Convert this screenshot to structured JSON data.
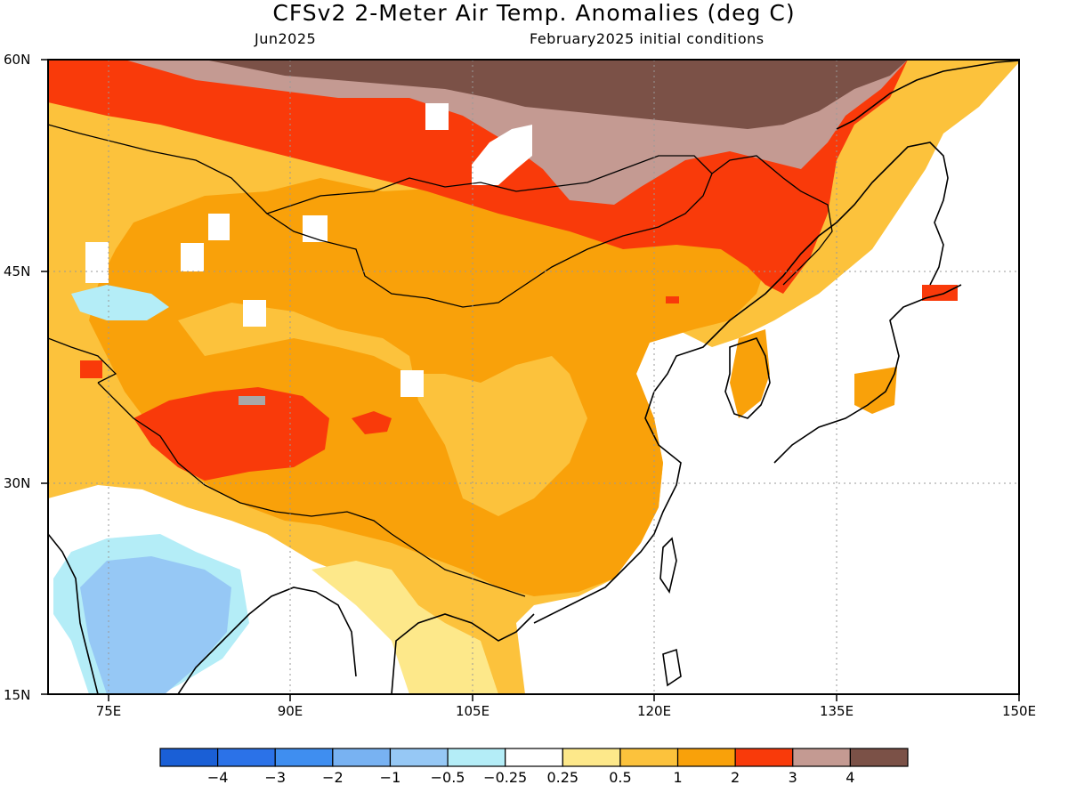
{
  "title": "CFSv2 2-Meter Air Temp. Anomalies (deg C)",
  "subtitle_left": "Jun2025",
  "subtitle_right": "February2025 initial conditions",
  "lat_labels": [
    "60N",
    "45N",
    "30N",
    "15N"
  ],
  "lon_labels": [
    "75E",
    "90E",
    "105E",
    "120E",
    "135E",
    "150E"
  ],
  "colorbar": {
    "colors": [
      "#1a5fd6",
      "#2b72e8",
      "#3f8ef0",
      "#78b2f2",
      "#96c8f5",
      "#b4edf7",
      "#ffffff",
      "#fde88a",
      "#fcc23c",
      "#f9a10a",
      "#f93a0a",
      "#c49a92",
      "#7b5147"
    ],
    "labels": [
      "−4",
      "−3",
      "−2",
      "−1",
      "−0.5",
      "−0.25",
      "0.25",
      "0.5",
      "1",
      "2",
      "3",
      "4"
    ]
  },
  "map": {
    "lon_range": [
      70,
      150
    ],
    "lat_range": [
      15,
      60
    ],
    "projection": "cylindrical equidistant",
    "grid": "dotted"
  }
}
